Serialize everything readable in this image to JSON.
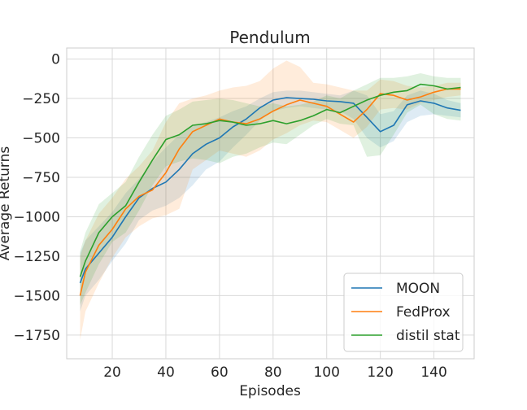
{
  "chart_data": {
    "type": "line",
    "title": "Pendulum",
    "xlabel": "Episodes",
    "ylabel": "Average Returns",
    "xlim": [
      3,
      155
    ],
    "ylim": [
      -1900,
      70
    ],
    "xticks": [
      20,
      40,
      60,
      80,
      100,
      120,
      140
    ],
    "yticks": [
      0,
      -250,
      -500,
      -750,
      -1000,
      -1250,
      -1500,
      -1750
    ],
    "grid": true,
    "legend_position": "lower-right",
    "series": [
      {
        "name": "MOON",
        "color": "#1f77b4",
        "x": [
          8,
          10,
          15,
          20,
          25,
          30,
          35,
          40,
          45,
          50,
          55,
          60,
          65,
          70,
          75,
          80,
          85,
          90,
          95,
          100,
          105,
          110,
          115,
          120,
          125,
          130,
          135,
          140,
          145,
          150
        ],
        "y": [
          -1420,
          -1330,
          -1230,
          -1130,
          -1000,
          -880,
          -820,
          -780,
          -700,
          -600,
          -540,
          -500,
          -430,
          -380,
          -310,
          -260,
          -245,
          -250,
          -255,
          -265,
          -270,
          -280,
          -370,
          -460,
          -420,
          -290,
          -265,
          -280,
          -310,
          -325
        ],
        "band_low": [
          -1600,
          -1500,
          -1400,
          -1280,
          -1170,
          -1020,
          -960,
          -930,
          -880,
          -800,
          -700,
          -650,
          -560,
          -480,
          -390,
          -330,
          -310,
          -300,
          -310,
          -320,
          -330,
          -380,
          -500,
          -560,
          -520,
          -400,
          -360,
          -350,
          -360,
          -370
        ],
        "band_high": [
          -1230,
          -1150,
          -1060,
          -970,
          -850,
          -760,
          -650,
          -560,
          -480,
          -420,
          -400,
          -370,
          -330,
          -300,
          -250,
          -210,
          -200,
          -200,
          -210,
          -220,
          -230,
          -200,
          -230,
          -350,
          -330,
          -230,
          -200,
          -220,
          -260,
          -280
        ]
      },
      {
        "name": "FedProx",
        "color": "#ff7f0e",
        "x": [
          8,
          10,
          15,
          20,
          25,
          30,
          35,
          40,
          45,
          50,
          55,
          60,
          65,
          70,
          75,
          80,
          85,
          90,
          95,
          100,
          105,
          110,
          115,
          120,
          125,
          130,
          135,
          140,
          145,
          150
        ],
        "y": [
          -1500,
          -1350,
          -1180,
          -1080,
          -950,
          -870,
          -830,
          -720,
          -570,
          -460,
          -420,
          -380,
          -400,
          -410,
          -380,
          -330,
          -290,
          -260,
          -280,
          -300,
          -350,
          -400,
          -320,
          -220,
          -230,
          -260,
          -240,
          -210,
          -190,
          -190
        ],
        "band_low": [
          -1780,
          -1600,
          -1420,
          -1260,
          -1130,
          -1060,
          -1010,
          -990,
          -950,
          -700,
          -640,
          -580,
          -600,
          -620,
          -580,
          -510,
          -470,
          -420,
          -390,
          -400,
          -450,
          -500,
          -430,
          -320,
          -310,
          -320,
          -280,
          -260,
          -240,
          -230
        ],
        "band_high": [
          -1250,
          -1150,
          -980,
          -880,
          -760,
          -680,
          -580,
          -400,
          -280,
          -250,
          -230,
          -200,
          -180,
          -170,
          -140,
          -60,
          -10,
          -50,
          -150,
          -160,
          -180,
          -200,
          -200,
          -130,
          -140,
          -170,
          -180,
          -170,
          -150,
          -150
        ]
      },
      {
        "name": "distil stat",
        "color": "#2ca02c",
        "x": [
          8,
          10,
          15,
          20,
          25,
          30,
          35,
          40,
          45,
          50,
          55,
          60,
          65,
          70,
          75,
          80,
          85,
          90,
          95,
          100,
          105,
          110,
          115,
          120,
          125,
          130,
          135,
          140,
          145,
          150
        ],
        "y": [
          -1380,
          -1280,
          -1100,
          -1000,
          -930,
          -780,
          -640,
          -510,
          -480,
          -420,
          -410,
          -390,
          -400,
          -420,
          -410,
          -390,
          -410,
          -390,
          -360,
          -320,
          -340,
          -300,
          -260,
          -230,
          -210,
          -200,
          -160,
          -170,
          -190,
          -180
        ],
        "band_low": [
          -1560,
          -1480,
          -1300,
          -1160,
          -1100,
          -960,
          -800,
          -680,
          -650,
          -630,
          -640,
          -660,
          -620,
          -600,
          -560,
          -530,
          -540,
          -480,
          -420,
          -380,
          -410,
          -420,
          -620,
          -610,
          -480,
          -340,
          -290,
          -350,
          -380,
          -390
        ],
        "band_high": [
          -1220,
          -1100,
          -920,
          -850,
          -780,
          -620,
          -480,
          -360,
          -320,
          -270,
          -260,
          -250,
          -260,
          -280,
          -300,
          -280,
          -300,
          -290,
          -270,
          -230,
          -250,
          -200,
          -160,
          -120,
          -120,
          -110,
          -90,
          -110,
          -120,
          -120
        ]
      }
    ]
  }
}
